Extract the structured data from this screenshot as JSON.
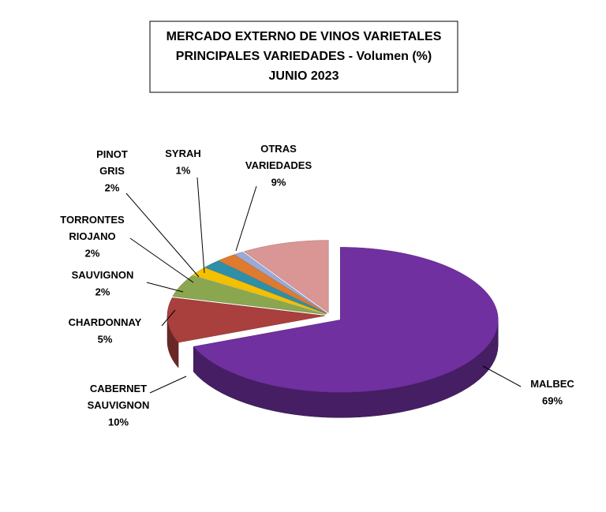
{
  "chart_data": {
    "type": "pie",
    "title": [
      "MERCADO EXTERNO DE VINOS VARIETALES",
      "PRINCIPALES VARIEDADES - Volumen (%)",
      "JUNIO 2023"
    ],
    "categories": [
      "MALBEC",
      "CABERNET SAUVIGNON",
      "CHARDONNAY",
      "SAUVIGNON",
      "TORRONTES RIOJANO",
      "PINOT GRIS",
      "SYRAH",
      "OTRAS VARIEDADES"
    ],
    "values": [
      69,
      10,
      5,
      2,
      2,
      2,
      1,
      9
    ],
    "value_labels": [
      "69%",
      "10%",
      "5%",
      "2%",
      "2%",
      "2%",
      "1%",
      "9%"
    ],
    "colors": [
      "#7030a0",
      "#a9403d",
      "#8aa74f",
      "#f5c000",
      "#2e8fa8",
      "#e07b2d",
      "#9aa9d6",
      "#d99694"
    ]
  }
}
